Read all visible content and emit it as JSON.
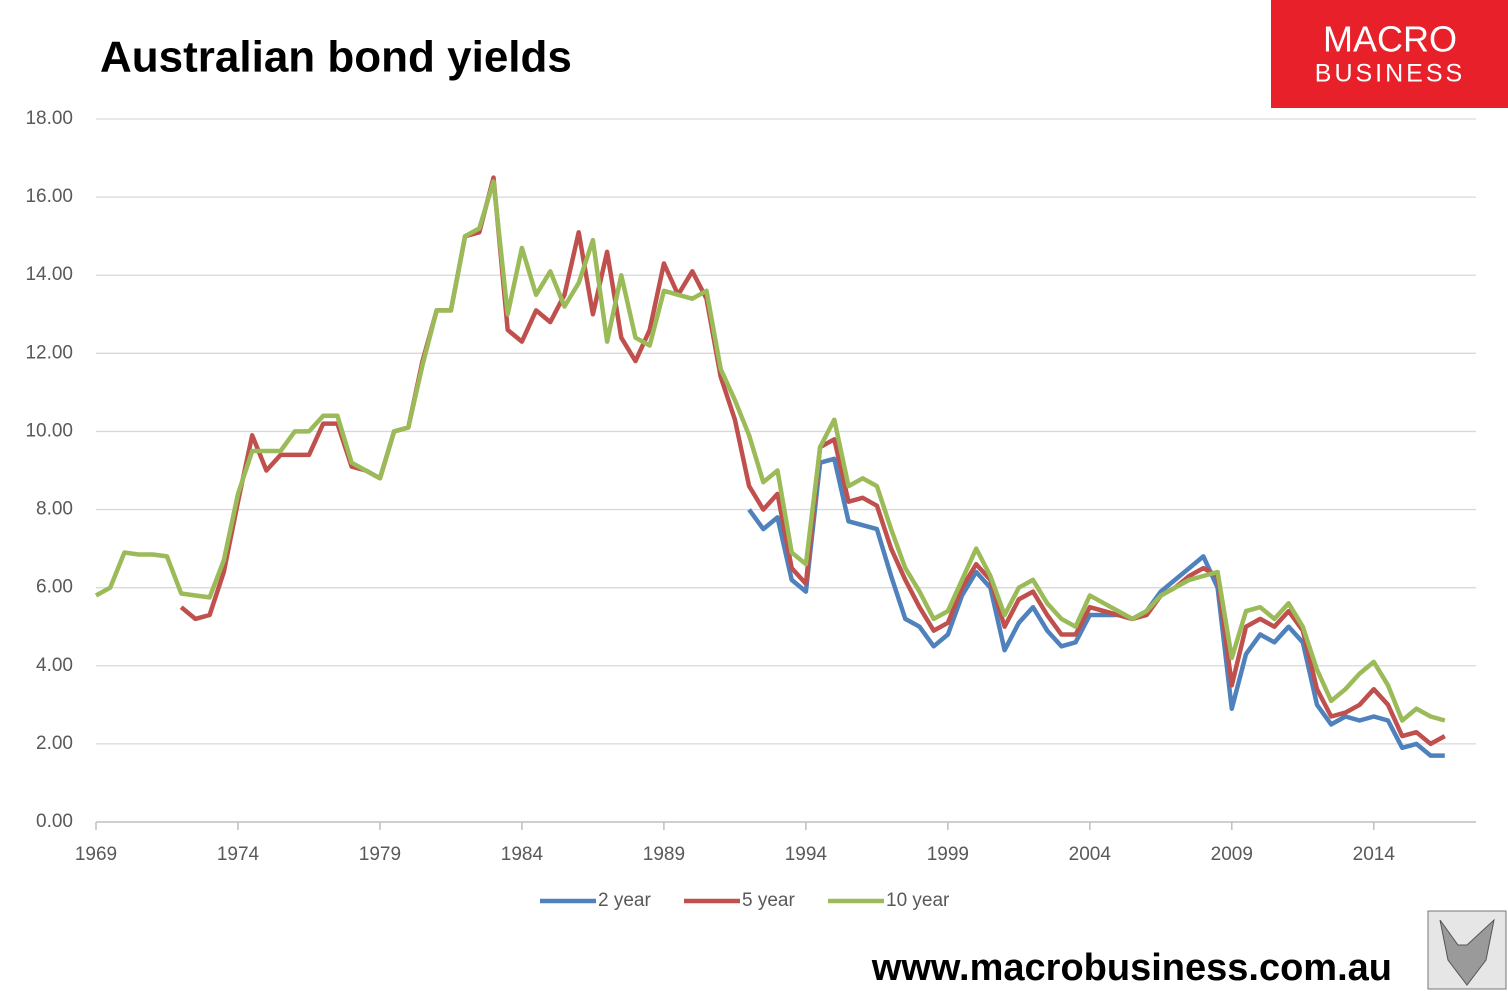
{
  "chart_data": {
    "type": "line",
    "title": "Australian bond yields",
    "x": [
      1969,
      1969.5,
      1970,
      1970.5,
      1971,
      1971.5,
      1972,
      1972.5,
      1973,
      1973.5,
      1974,
      1974.5,
      1975,
      1975.5,
      1976,
      1976.5,
      1977,
      1977.5,
      1978,
      1978.5,
      1979,
      1979.5,
      1980,
      1980.5,
      1981,
      1981.5,
      1982,
      1982.5,
      1983,
      1983.5,
      1984,
      1984.5,
      1985,
      1985.5,
      1986,
      1986.5,
      1987,
      1987.5,
      1988,
      1988.5,
      1989,
      1989.5,
      1990,
      1990.5,
      1991,
      1991.5,
      1992,
      1992.5,
      1993,
      1993.5,
      1994,
      1994.5,
      1995,
      1995.5,
      1996,
      1996.5,
      1997,
      1997.5,
      1998,
      1998.5,
      1999,
      1999.5,
      2000,
      2000.5,
      2001,
      2001.5,
      2002,
      2002.5,
      2003,
      2003.5,
      2004,
      2004.5,
      2005,
      2005.5,
      2006,
      2006.5,
      2007,
      2007.5,
      2008,
      2008.5,
      2009,
      2009.5,
      2010,
      2010.5,
      2011,
      2011.5,
      2012,
      2012.5,
      2013,
      2013.5,
      2014,
      2014.5,
      2015,
      2015.5,
      2016,
      2016.5
    ],
    "series": [
      {
        "name": "2 year",
        "color": "#4f81bd",
        "values": [
          null,
          null,
          null,
          null,
          null,
          null,
          null,
          null,
          null,
          null,
          null,
          null,
          null,
          null,
          null,
          null,
          null,
          null,
          null,
          null,
          null,
          null,
          null,
          null,
          null,
          null,
          null,
          null,
          null,
          null,
          null,
          null,
          null,
          null,
          null,
          null,
          null,
          null,
          null,
          null,
          null,
          null,
          null,
          null,
          null,
          null,
          8.0,
          7.5,
          7.8,
          6.2,
          5.9,
          9.2,
          9.3,
          7.7,
          7.6,
          7.5,
          6.3,
          5.2,
          5.0,
          4.5,
          4.8,
          5.8,
          6.4,
          6.0,
          4.4,
          5.1,
          5.5,
          4.9,
          4.5,
          4.6,
          5.3,
          5.3,
          5.3,
          5.2,
          5.4,
          5.9,
          6.2,
          6.5,
          6.8,
          6.0,
          2.9,
          4.3,
          4.8,
          4.6,
          5.0,
          4.6,
          3.0,
          2.5,
          2.7,
          2.6,
          2.7,
          2.6,
          1.9,
          2.0,
          1.7,
          1.7
        ]
      },
      {
        "name": "5 year",
        "color": "#c0504d",
        "values": [
          null,
          null,
          null,
          null,
          null,
          null,
          5.5,
          5.2,
          5.3,
          6.4,
          8.2,
          9.9,
          9.0,
          9.4,
          9.4,
          9.4,
          10.2,
          10.2,
          9.1,
          9.0,
          8.8,
          10.0,
          10.1,
          11.8,
          13.1,
          13.1,
          15.0,
          15.1,
          16.5,
          12.6,
          12.3,
          13.1,
          12.8,
          13.5,
          15.1,
          13.0,
          14.6,
          12.4,
          11.8,
          12.6,
          14.3,
          13.5,
          14.1,
          13.4,
          11.4,
          10.3,
          8.6,
          8.0,
          8.4,
          6.5,
          6.1,
          9.6,
          9.8,
          8.2,
          8.3,
          8.1,
          7.0,
          6.2,
          5.5,
          4.9,
          5.1,
          6.0,
          6.6,
          6.2,
          5.0,
          5.7,
          5.9,
          5.3,
          4.8,
          4.8,
          5.5,
          5.4,
          5.3,
          5.2,
          5.3,
          5.8,
          6.0,
          6.3,
          6.5,
          6.3,
          3.5,
          5.0,
          5.2,
          5.0,
          5.4,
          4.9,
          3.4,
          2.7,
          2.8,
          3.0,
          3.4,
          3.0,
          2.2,
          2.3,
          2.0,
          2.2
        ]
      },
      {
        "name": "10 year",
        "color": "#9bbb59",
        "values": [
          5.8,
          6.0,
          6.9,
          6.85,
          6.85,
          6.8,
          5.85,
          5.8,
          5.75,
          6.7,
          8.4,
          9.5,
          9.5,
          9.5,
          10.0,
          10.0,
          10.4,
          10.4,
          9.2,
          9.0,
          8.8,
          10.0,
          10.1,
          11.7,
          13.1,
          13.1,
          15.0,
          15.2,
          16.4,
          13.0,
          14.7,
          13.5,
          14.1,
          13.2,
          13.8,
          14.9,
          12.3,
          14.0,
          12.4,
          12.2,
          13.6,
          13.5,
          13.4,
          13.6,
          11.6,
          10.8,
          9.9,
          8.7,
          9.0,
          6.9,
          6.6,
          9.6,
          10.3,
          8.6,
          8.8,
          8.6,
          7.5,
          6.5,
          5.9,
          5.2,
          5.4,
          6.2,
          7.0,
          6.3,
          5.3,
          6.0,
          6.2,
          5.6,
          5.2,
          5.0,
          5.8,
          5.6,
          5.4,
          5.2,
          5.4,
          5.8,
          6.0,
          6.2,
          6.3,
          6.4,
          4.2,
          5.4,
          5.5,
          5.2,
          5.6,
          5.0,
          3.9,
          3.1,
          3.4,
          3.8,
          4.1,
          3.5,
          2.6,
          2.9,
          2.7,
          2.6
        ]
      }
    ],
    "xlim": [
      1969,
      2017.6
    ],
    "xticks": [
      1969,
      1974,
      1979,
      1984,
      1989,
      1994,
      1999,
      2004,
      2009,
      2014
    ],
    "ylim": [
      0,
      18
    ],
    "yticks": [
      {
        "value": 0,
        "label": "0.00"
      },
      {
        "value": 2,
        "label": "2.00"
      },
      {
        "value": 4,
        "label": "4.00"
      },
      {
        "value": 6,
        "label": "6.00"
      },
      {
        "value": 8,
        "label": "8.00"
      },
      {
        "value": 10,
        "label": "10.00"
      },
      {
        "value": 12,
        "label": "12.00"
      },
      {
        "value": 14,
        "label": "14.00"
      },
      {
        "value": 16,
        "label": "16.00"
      },
      {
        "value": 18,
        "label": "18.00"
      }
    ],
    "grid": true,
    "legend": "bottom"
  },
  "branding": {
    "logo_top": "MACRO",
    "logo_bottom": "BUSINESS",
    "website": "www.macrobusiness.com.au"
  }
}
